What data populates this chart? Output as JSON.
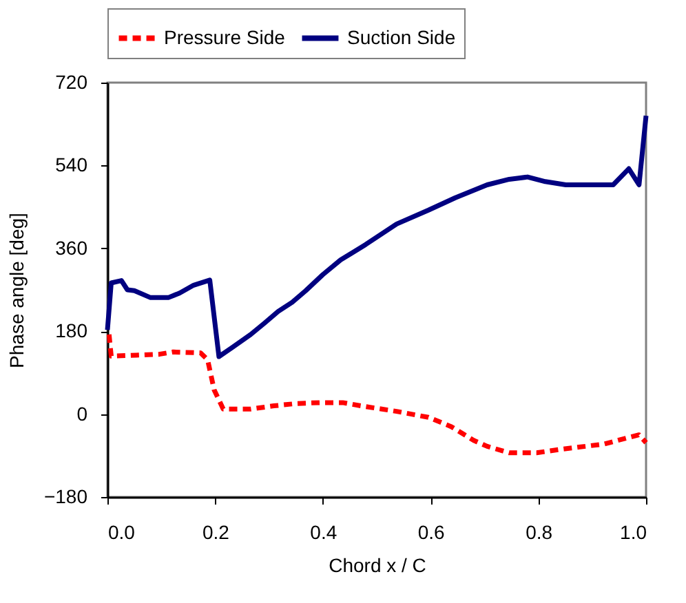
{
  "chart_data": {
    "type": "line",
    "xlabel": "Chord  x / C",
    "ylabel": "Phase angle [deg]",
    "xlim": [
      0,
      1
    ],
    "xticks": [
      {
        "value": 0,
        "label": "0.0"
      },
      {
        "value": 0.2,
        "label": "0.2"
      },
      {
        "value": 0.4,
        "label": "0.4"
      },
      {
        "value": 0.6,
        "label": "0.6"
      },
      {
        "value": 0.8,
        "label": "0.8"
      },
      {
        "value": 1,
        "label": "1.0"
      }
    ],
    "ylim": [
      -180,
      720
    ],
    "yticks": [
      -180,
      0,
      180,
      360,
      540,
      720
    ],
    "grid": false,
    "legend": "top",
    "marker": "none",
    "series": [
      {
        "name": "Pressure Side",
        "color": "#ff0000",
        "line_style": "dashed",
        "x": [
          0.003,
          0.007,
          0.054,
          0.096,
          0.122,
          0.173,
          0.186,
          0.198,
          0.215,
          0.266,
          0.309,
          0.351,
          0.394,
          0.437,
          0.47,
          0.537,
          0.596,
          0.638,
          0.68,
          0.705,
          0.746,
          0.797,
          0.838,
          0.922,
          0.964,
          0.987,
          1.0
        ],
        "values": [
          173,
          126,
          128,
          130,
          135,
          133,
          118,
          53,
          11,
          11,
          18,
          23,
          25,
          25,
          18,
          6,
          -7,
          -27,
          -57,
          -70,
          -84,
          -84,
          -77,
          -65,
          -52,
          -45,
          -62
        ]
      },
      {
        "name": "Suction Side",
        "color": "#000080",
        "line_style": "solid",
        "x": [
          0,
          0.007,
          0.026,
          0.037,
          0.05,
          0.08,
          0.113,
          0.134,
          0.16,
          0.19,
          0.207,
          0.232,
          0.266,
          0.292,
          0.317,
          0.343,
          0.368,
          0.4,
          0.433,
          0.479,
          0.537,
          0.596,
          0.646,
          0.705,
          0.746,
          0.78,
          0.813,
          0.851,
          0.939,
          0.968,
          0.987,
          1.0
        ],
        "values": [
          183,
          285,
          290,
          270,
          268,
          253,
          253,
          263,
          280,
          291,
          125,
          145,
          173,
          198,
          223,
          243,
          268,
          303,
          335,
          368,
          413,
          443,
          470,
          498,
          510,
          515,
          505,
          498,
          498,
          533,
          498,
          648
        ]
      }
    ]
  }
}
